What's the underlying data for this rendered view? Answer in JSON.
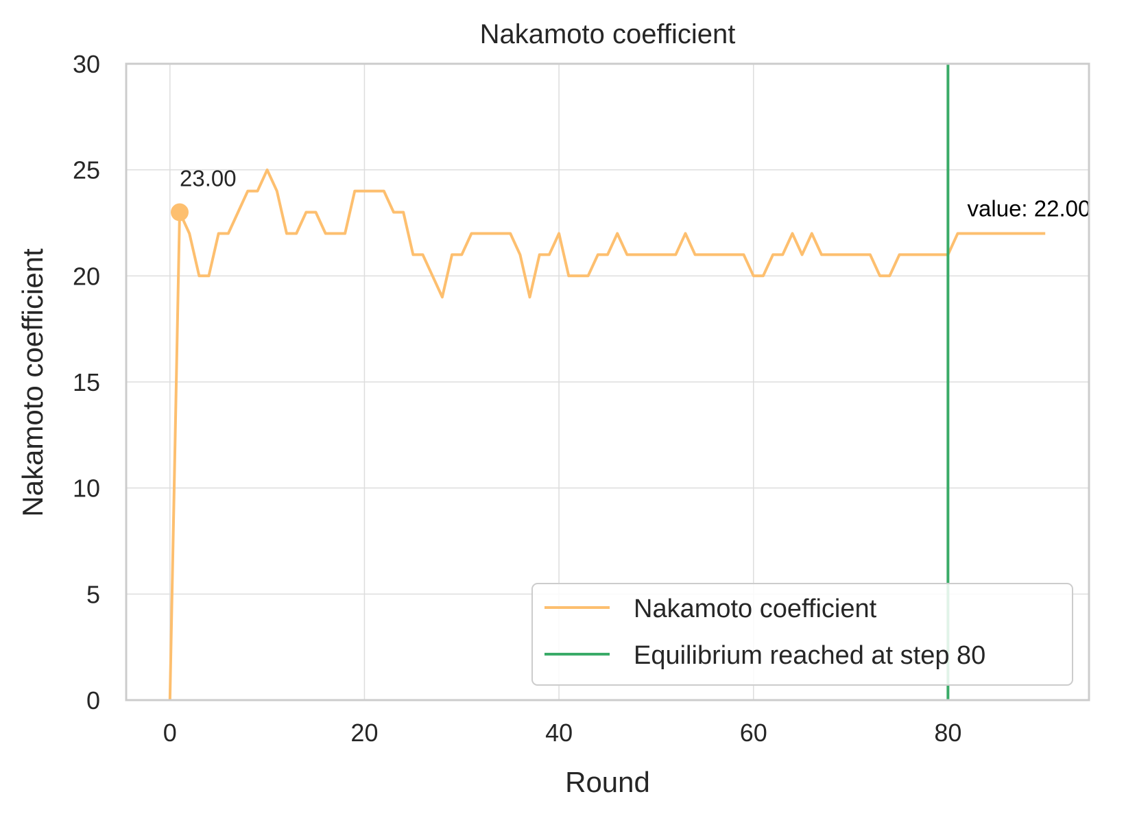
{
  "chart_data": {
    "type": "line",
    "title": "Nakamoto coefficient",
    "xlabel": "Round",
    "ylabel": "Nakamoto coefficient",
    "xlim": [
      -4.5,
      94.5
    ],
    "ylim": [
      0,
      30
    ],
    "xticks": [
      0,
      20,
      40,
      60,
      80
    ],
    "yticks": [
      0,
      5,
      10,
      15,
      20,
      25,
      30
    ],
    "grid": true,
    "legend_position": "lower-right",
    "series": [
      {
        "name": "Nakamoto coefficient",
        "color": "#fdbf6f",
        "x": [
          0,
          1,
          2,
          3,
          4,
          5,
          6,
          7,
          8,
          9,
          10,
          11,
          12,
          13,
          14,
          15,
          16,
          17,
          18,
          19,
          20,
          21,
          22,
          23,
          24,
          25,
          26,
          27,
          28,
          29,
          30,
          31,
          32,
          33,
          34,
          35,
          36,
          37,
          38,
          39,
          40,
          41,
          42,
          43,
          44,
          45,
          46,
          47,
          48,
          49,
          50,
          51,
          52,
          53,
          54,
          55,
          56,
          57,
          58,
          59,
          60,
          61,
          62,
          63,
          64,
          65,
          66,
          67,
          68,
          69,
          70,
          71,
          72,
          73,
          74,
          75,
          76,
          77,
          78,
          79,
          80,
          81,
          82,
          83,
          84,
          85,
          86,
          87,
          88,
          89,
          90
        ],
        "y": [
          0,
          23,
          22,
          20,
          20,
          22,
          22,
          23,
          24,
          24,
          25,
          24,
          22,
          22,
          23,
          23,
          22,
          22,
          22,
          24,
          24,
          24,
          24,
          23,
          23,
          21,
          21,
          20,
          19,
          21,
          21,
          22,
          22,
          22,
          22,
          22,
          21,
          19,
          21,
          21,
          22,
          20,
          20,
          20,
          21,
          21,
          22,
          21,
          21,
          21,
          21,
          21,
          21,
          22,
          21,
          21,
          21,
          21,
          21,
          21,
          20,
          20,
          21,
          21,
          22,
          21,
          22,
          21,
          21,
          21,
          21,
          21,
          21,
          20,
          20,
          21,
          21,
          21,
          21,
          21,
          21,
          22,
          22,
          22,
          22,
          22,
          22,
          22,
          22,
          22,
          22
        ]
      }
    ],
    "vline": {
      "name": "Equilibrium reached at step 80",
      "x": 80,
      "color": "#3aab68"
    },
    "annotations": [
      {
        "text": "23.00",
        "x": 1,
        "y": 23,
        "marker": true
      },
      {
        "text": "value: 22.00",
        "x": 81,
        "y": 22
      }
    ]
  }
}
